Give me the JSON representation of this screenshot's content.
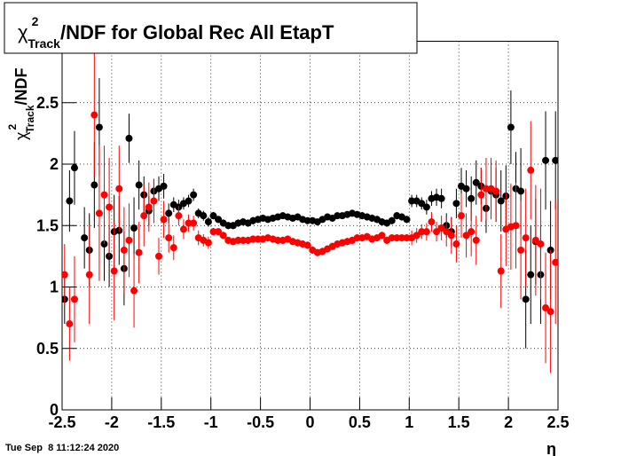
{
  "chart_data": {
    "type": "scatter",
    "title": {
      "symbol": "χ",
      "sup": "2",
      "sub": "Track",
      "text": "/NDF for Global Rec All EtapT"
    },
    "ylabel": {
      "symbol": "χ",
      "sup": "2",
      "sub": "Track",
      "text": "/NDF"
    },
    "xlabel": "η",
    "timestamp": "Tue Sep  8 11:12:24 2020",
    "xlim": [
      -2.5,
      2.5
    ],
    "ylim": [
      0,
      3
    ],
    "xticks": [
      -2.5,
      -2,
      -1.5,
      -1,
      -0.5,
      0,
      0.5,
      1,
      1.5,
      2,
      2.5
    ],
    "yticks": [
      0,
      0.5,
      1,
      1.5,
      2,
      2.5
    ],
    "grid": true,
    "x": [
      -2.475,
      -2.425,
      -2.375,
      -2.325,
      -2.275,
      -2.225,
      -2.175,
      -2.125,
      -2.075,
      -2.025,
      -1.975,
      -1.925,
      -1.875,
      -1.825,
      -1.775,
      -1.725,
      -1.675,
      -1.625,
      -1.575,
      -1.525,
      -1.475,
      -1.425,
      -1.375,
      -1.325,
      -1.275,
      -1.225,
      -1.175,
      -1.125,
      -1.075,
      -1.025,
      -0.975,
      -0.925,
      -0.875,
      -0.825,
      -0.775,
      -0.725,
      -0.675,
      -0.625,
      -0.575,
      -0.525,
      -0.475,
      -0.425,
      -0.375,
      -0.325,
      -0.275,
      -0.225,
      -0.175,
      -0.125,
      -0.075,
      -0.025,
      0.025,
      0.075,
      0.125,
      0.175,
      0.225,
      0.275,
      0.325,
      0.375,
      0.425,
      0.475,
      0.525,
      0.575,
      0.625,
      0.675,
      0.725,
      0.775,
      0.825,
      0.875,
      0.925,
      0.975,
      1.025,
      1.075,
      1.125,
      1.175,
      1.225,
      1.275,
      1.325,
      1.375,
      1.425,
      1.475,
      1.525,
      1.575,
      1.625,
      1.675,
      1.725,
      1.775,
      1.825,
      1.875,
      1.925,
      1.975,
      2.025,
      2.075,
      2.125,
      2.175,
      2.225,
      2.275,
      2.325,
      2.375,
      2.425,
      2.475
    ],
    "series": [
      {
        "color": "#000000",
        "values": [
          0.9,
          1.7,
          1.97,
          null,
          1.4,
          1.3,
          1.83,
          2.3,
          1.35,
          1.25,
          1.45,
          1.46,
          1.15,
          2.21,
          1.48,
          1.83,
          1.75,
          1.62,
          1.78,
          1.8,
          1.82,
          1.6,
          1.67,
          1.65,
          1.68,
          1.7,
          1.75,
          1.6,
          1.58,
          1.53,
          1.58,
          1.55,
          1.52,
          1.5,
          1.5,
          1.52,
          1.53,
          1.52,
          1.54,
          1.55,
          1.56,
          1.55,
          1.56,
          1.57,
          1.58,
          1.57,
          1.56,
          1.57,
          1.55,
          1.54,
          1.54,
          1.53,
          1.55,
          1.57,
          1.56,
          1.58,
          1.58,
          1.59,
          1.6,
          1.59,
          1.58,
          1.57,
          1.56,
          1.55,
          1.53,
          1.52,
          1.54,
          1.58,
          1.57,
          1.55,
          1.7,
          1.7,
          1.68,
          1.65,
          1.72,
          1.73,
          1.72,
          1.5,
          1.45,
          1.68,
          1.82,
          1.8,
          1.72,
          1.85,
          1.82,
          1.64,
          1.78,
          1.75,
          1.7,
          1.74,
          2.3,
          1.8,
          1.78,
          0.9,
          1.1,
          1.37,
          1.1,
          2.03,
          1.3,
          2.03
        ],
        "errors": [
          0.2,
          0.25,
          0.3,
          null,
          0.25,
          0.3,
          0.35,
          0.4,
          0.3,
          0.25,
          0.3,
          0.28,
          0.3,
          0.2,
          0.25,
          0.2,
          0.15,
          0.12,
          0.1,
          0.1,
          0.1,
          0.08,
          0.06,
          0.06,
          0.05,
          0.05,
          0.05,
          0.04,
          0.04,
          0.04,
          0.03,
          0.03,
          0.03,
          0.03,
          0.03,
          0.03,
          0.03,
          0.03,
          0.03,
          0.03,
          0.02,
          0.02,
          0.02,
          0.02,
          0.02,
          0.02,
          0.02,
          0.02,
          0.02,
          0.02,
          0.02,
          0.02,
          0.02,
          0.02,
          0.02,
          0.02,
          0.02,
          0.02,
          0.02,
          0.02,
          0.03,
          0.03,
          0.03,
          0.03,
          0.03,
          0.03,
          0.03,
          0.03,
          0.03,
          0.03,
          0.05,
          0.05,
          0.05,
          0.06,
          0.06,
          0.07,
          0.08,
          0.1,
          0.12,
          0.12,
          0.15,
          0.15,
          0.18,
          0.18,
          0.15,
          0.2,
          0.2,
          0.22,
          0.25,
          0.25,
          0.3,
          0.3,
          0.35,
          0.4,
          0.4,
          0.35,
          0.4,
          0.4,
          0.4,
          0.4
        ]
      },
      {
        "color": "#ff0000",
        "values": [
          1.1,
          0.7,
          0.9,
          null,
          null,
          1.1,
          2.4,
          1.6,
          1.75,
          1.65,
          1.13,
          1.8,
          1.3,
          1.38,
          0.97,
          1.28,
          1.58,
          1.65,
          1.7,
          1.25,
          1.55,
          1.4,
          1.32,
          1.58,
          1.47,
          1.52,
          1.52,
          1.4,
          1.38,
          1.36,
          1.45,
          1.45,
          1.42,
          1.38,
          1.37,
          1.38,
          1.38,
          1.38,
          1.39,
          1.39,
          1.39,
          1.4,
          1.39,
          1.38,
          1.38,
          1.39,
          1.37,
          1.36,
          1.35,
          1.34,
          1.3,
          1.28,
          1.29,
          1.31,
          1.33,
          1.35,
          1.36,
          1.37,
          1.38,
          1.4,
          1.4,
          1.41,
          1.39,
          1.4,
          1.42,
          1.38,
          1.4,
          1.4,
          1.4,
          1.4,
          1.4,
          1.42,
          1.45,
          1.45,
          1.53,
          1.45,
          1.48,
          1.45,
          1.42,
          1.35,
          1.58,
          1.42,
          1.45,
          1.38,
          1.75,
          1.8,
          1.8,
          1.78,
          1.13,
          1.47,
          1.49,
          1.5,
          1.3,
          1.4,
          1.95,
          1.38,
          1.35,
          0.83,
          0.8,
          1.2
        ],
        "errors": [
          0.25,
          0.3,
          0.35,
          null,
          null,
          0.4,
          0.5,
          0.55,
          0.4,
          0.4,
          0.4,
          0.35,
          0.35,
          0.3,
          0.3,
          0.25,
          0.25,
          0.2,
          0.18,
          0.15,
          0.15,
          0.12,
          0.1,
          0.08,
          0.08,
          0.07,
          0.06,
          0.06,
          0.05,
          0.05,
          0.03,
          0.03,
          0.03,
          0.03,
          0.03,
          0.03,
          0.03,
          0.03,
          0.03,
          0.03,
          0.03,
          0.03,
          0.03,
          0.03,
          0.03,
          0.03,
          0.03,
          0.03,
          0.03,
          0.03,
          0.03,
          0.03,
          0.03,
          0.03,
          0.03,
          0.03,
          0.03,
          0.03,
          0.03,
          0.03,
          0.03,
          0.03,
          0.03,
          0.03,
          0.03,
          0.03,
          0.03,
          0.03,
          0.03,
          0.03,
          0.06,
          0.06,
          0.06,
          0.07,
          0.08,
          0.08,
          0.1,
          0.12,
          0.15,
          0.15,
          0.18,
          0.18,
          0.2,
          0.2,
          0.22,
          0.25,
          0.25,
          0.25,
          0.3,
          0.3,
          0.35,
          0.35,
          0.4,
          0.4,
          0.4,
          0.45,
          0.45,
          0.45,
          0.5,
          0.5
        ]
      }
    ]
  }
}
